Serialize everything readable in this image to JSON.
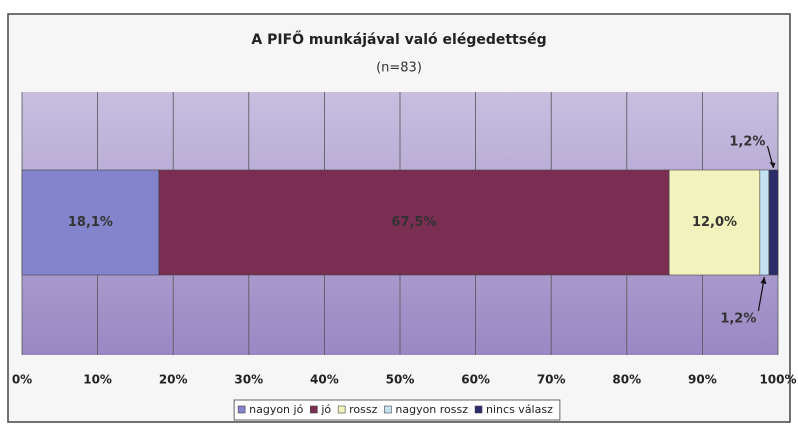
{
  "chart_data": {
    "type": "stacked-bar-horizontal",
    "title": "A PIFŐ munkájával való elégedettség",
    "subtitle": "(n=83)",
    "series": [
      {
        "name": "nagyon jó",
        "color": "#8484cc",
        "values": [
          18.1
        ],
        "value_labels": [
          "18,1%"
        ]
      },
      {
        "name": "jó",
        "color": "#7a2e52",
        "values": [
          67.5
        ],
        "value_labels": [
          "67,5%"
        ]
      },
      {
        "name": "rossz",
        "color": "#f2f2bc",
        "values": [
          12.0
        ],
        "value_labels": [
          "12,0%"
        ]
      },
      {
        "name": "nagyon rossz",
        "color": "#c4e2f2",
        "values": [
          1.2
        ],
        "value_labels": [
          "1,2%"
        ]
      },
      {
        "name": "nincs válasz",
        "color": "#2c2c6a",
        "values": [
          1.2
        ],
        "value_labels": [
          "1,2%"
        ]
      }
    ],
    "xlim": [
      0,
      100
    ],
    "xticks": [
      {
        "value": 0,
        "label": "0%"
      },
      {
        "value": 10,
        "label": "10%"
      },
      {
        "value": 20,
        "label": "20%"
      },
      {
        "value": 30,
        "label": "30%"
      },
      {
        "value": 40,
        "label": "40%"
      },
      {
        "value": 50,
        "label": "50%"
      },
      {
        "value": 60,
        "label": "60%"
      },
      {
        "value": 70,
        "label": "70%"
      },
      {
        "value": 80,
        "label": "80%"
      },
      {
        "value": 90,
        "label": "90%"
      },
      {
        "value": 100,
        "label": "100%"
      }
    ],
    "grid": true
  }
}
